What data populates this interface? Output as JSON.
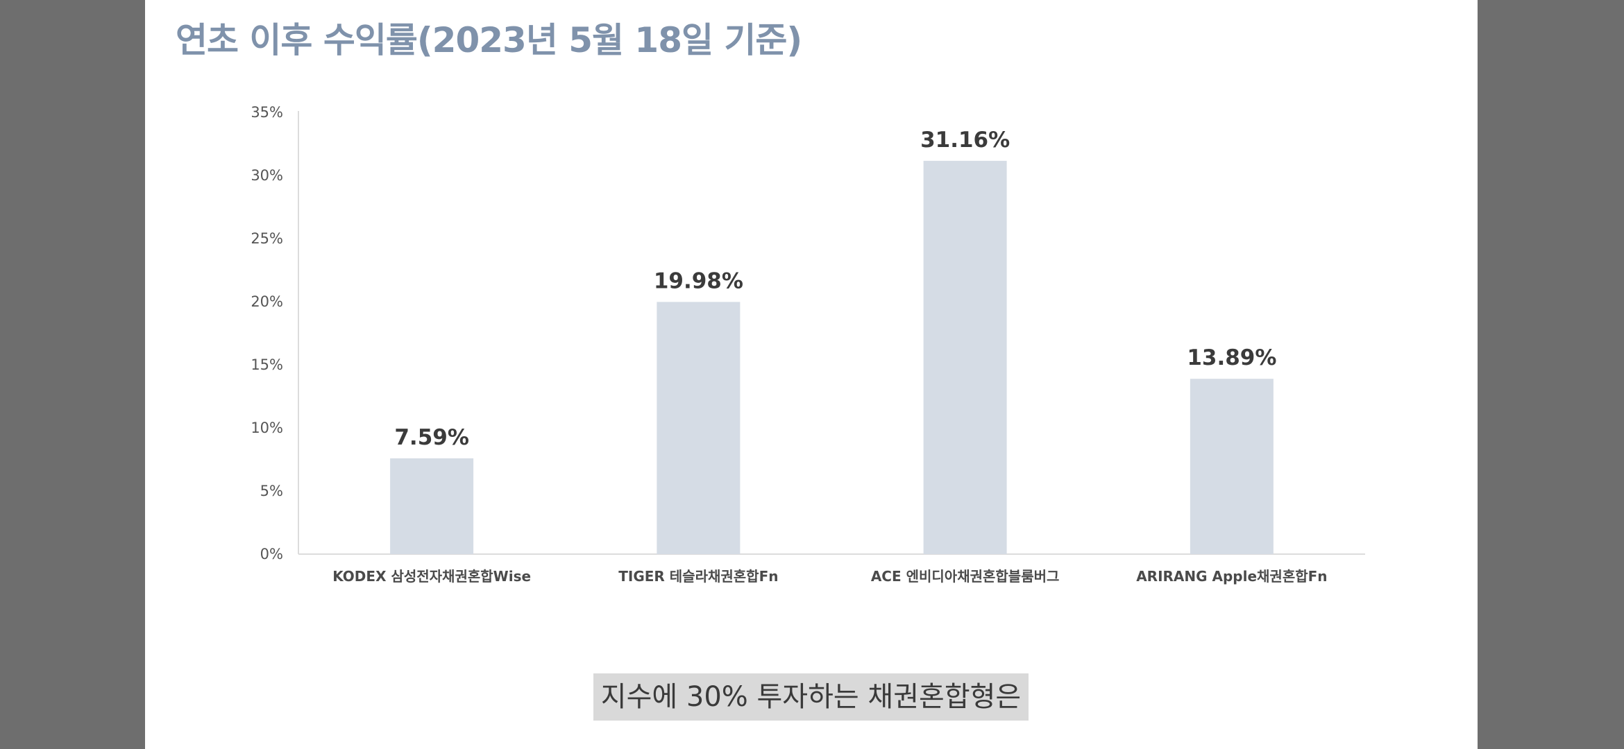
{
  "chart_data": {
    "type": "bar",
    "title": "연초 이후 수익률(2023년 5월 18일 기준)",
    "categories": [
      "KODEX 삼성전자채권혼합Wise",
      "TIGER 테슬라채권혼합Fn",
      "ACE 엔비디아채권혼합블룸버그",
      "ARIRANG Apple채권혼합Fn"
    ],
    "values": [
      7.59,
      19.98,
      31.16,
      13.89
    ],
    "data_labels": [
      "7.59%",
      "19.98%",
      "31.16%",
      "13.89%"
    ],
    "yticks": [
      0,
      5,
      10,
      15,
      20,
      25,
      30,
      35
    ],
    "ytick_labels": [
      "0%",
      "5%",
      "10%",
      "15%",
      "20%",
      "25%",
      "30%",
      "35%"
    ],
    "ylim": [
      0,
      35
    ],
    "xlabel": "",
    "ylabel": "",
    "grid": false,
    "legend": "none",
    "bar_color": "#d5dce5"
  },
  "caption": {
    "text": "지수에 30% 투자하는 채권혼합형은"
  },
  "colors": {
    "title": "#7f92ab",
    "background_sides": "#6e6e6e",
    "caption_bg": "#d9d9d9"
  }
}
